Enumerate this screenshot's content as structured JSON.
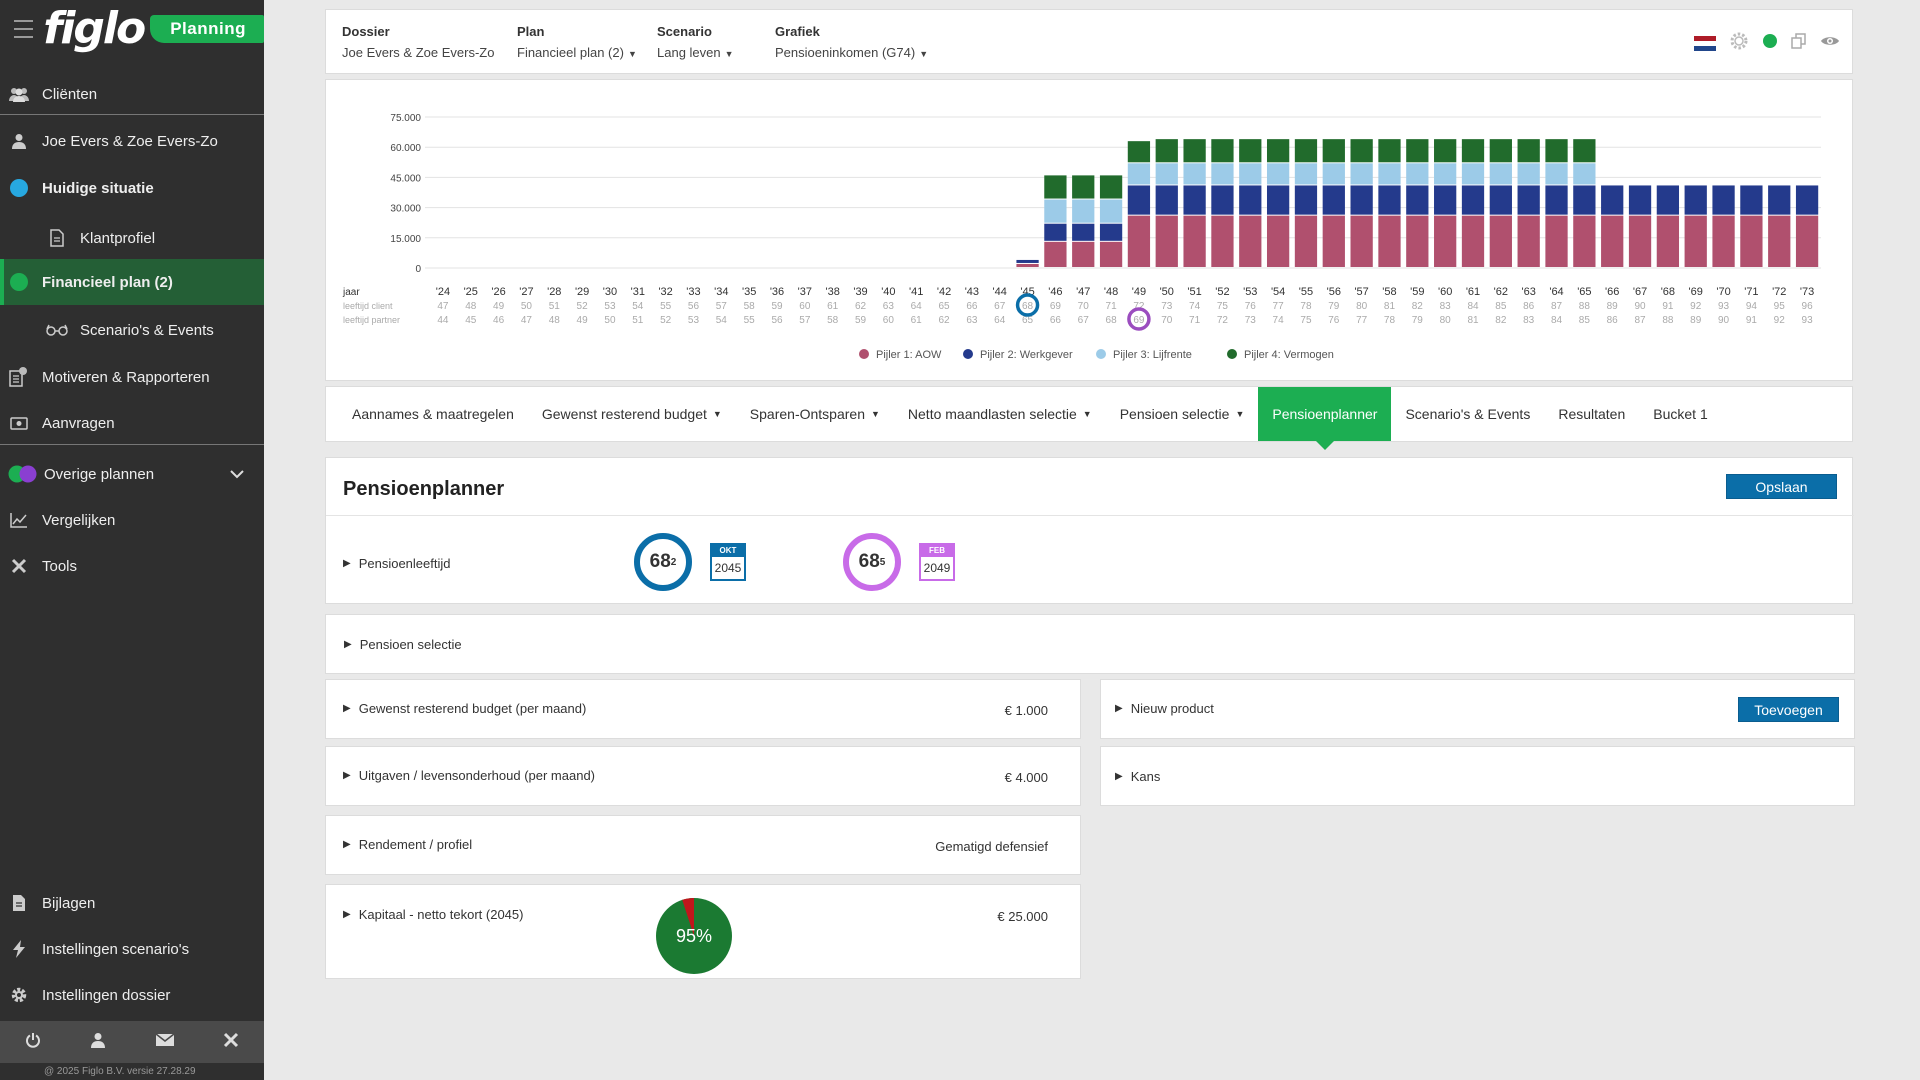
{
  "sidebar": {
    "logo": "figlo",
    "badge": "Planning",
    "items": {
      "clienten": "Cliënten",
      "client": "Joe Evers & Zoe Evers-Zo",
      "huidige": "Huidige situatie",
      "klantprofiel": "Klantprofiel",
      "financieel": "Financieel plan (2)",
      "scenarios": "Scenario's & Events",
      "motiveren": "Motiveren & Rapporteren",
      "aanvragen": "Aanvragen",
      "overige": "Overige plannen",
      "vergelijken": "Vergelijken",
      "tools": "Tools",
      "bijlagen": "Bijlagen",
      "inst_scenarios": "Instellingen scenario's",
      "inst_dossier": "Instellingen dossier"
    },
    "copyright": "@ 2025 Figlo B.V. versie 27.28.29"
  },
  "header": {
    "dossier_label": "Dossier",
    "dossier_value": "Joe Evers & Zoe Evers-Zo",
    "plan_label": "Plan",
    "plan_value": "Financieel plan (2)",
    "scenario_label": "Scenario",
    "scenario_value": "Lang leven",
    "grafiek_label": "Grafiek",
    "grafiek_value": "Pensioeninkomen (G74)"
  },
  "colors": {
    "aow": "#b0506e",
    "werkgever": "#243a8c",
    "lijfrente": "#9ccbe8",
    "vermogen": "#216b2c",
    "green": "#1cae52",
    "blue": "#0b6ea8",
    "purple": "#c86be8"
  },
  "chart_data": {
    "type": "bar",
    "stacked": true,
    "categories": [
      "'24",
      "'25",
      "'26",
      "'27",
      "'28",
      "'29",
      "'30",
      "'31",
      "'32",
      "'33",
      "'34",
      "'35",
      "'36",
      "'37",
      "'38",
      "'39",
      "'40",
      "'41",
      "'42",
      "'43",
      "'44",
      "'45",
      "'46",
      "'47",
      "'48",
      "'49",
      "'50",
      "'51",
      "'52",
      "'53",
      "'54",
      "'55",
      "'56",
      "'57",
      "'58",
      "'59",
      "'60",
      "'61",
      "'62",
      "'63",
      "'64",
      "'65",
      "'66",
      "'67",
      "'68",
      "'69",
      "'70",
      "'71",
      "'72",
      "'73"
    ],
    "ylim": [
      0,
      75000
    ],
    "yticks": [
      "75.000",
      "60.000",
      "45.000",
      "30.000",
      "15.000",
      "0"
    ],
    "ytick_values": [
      75000,
      60000,
      45000,
      30000,
      15000,
      0
    ],
    "series": [
      {
        "name": "Pijler 1: AOW",
        "values": [
          0,
          0,
          0,
          0,
          0,
          0,
          0,
          0,
          0,
          0,
          0,
          0,
          0,
          0,
          0,
          0,
          0,
          0,
          0,
          0,
          0,
          2000,
          13000,
          13000,
          13000,
          26000,
          26000,
          26000,
          26000,
          26000,
          26000,
          26000,
          26000,
          26000,
          26000,
          26000,
          26000,
          26000,
          26000,
          26000,
          26000,
          26000,
          26000,
          26000,
          26000,
          26000,
          26000,
          26000,
          26000,
          26000
        ]
      },
      {
        "name": "Pijler 2: Werkgever",
        "values": [
          0,
          0,
          0,
          0,
          0,
          0,
          0,
          0,
          0,
          0,
          0,
          0,
          0,
          0,
          0,
          0,
          0,
          0,
          0,
          0,
          0,
          2000,
          9000,
          9000,
          9000,
          15000,
          15000,
          15000,
          15000,
          15000,
          15000,
          15000,
          15000,
          15000,
          15000,
          15000,
          15000,
          15000,
          15000,
          15000,
          15000,
          15000,
          15000,
          15000,
          15000,
          15000,
          15000,
          15000,
          15000,
          15000
        ]
      },
      {
        "name": "Pijler 3: Lijfrente",
        "values": [
          0,
          0,
          0,
          0,
          0,
          0,
          0,
          0,
          0,
          0,
          0,
          0,
          0,
          0,
          0,
          0,
          0,
          0,
          0,
          0,
          0,
          0,
          12000,
          12000,
          12000,
          11000,
          11000,
          11000,
          11000,
          11000,
          11000,
          11000,
          11000,
          11000,
          11000,
          11000,
          11000,
          11000,
          11000,
          11000,
          11000,
          11000,
          0,
          0,
          0,
          0,
          0,
          0,
          0,
          0
        ]
      },
      {
        "name": "Pijler 4: Vermogen",
        "values": [
          0,
          0,
          0,
          0,
          0,
          0,
          0,
          0,
          0,
          0,
          0,
          0,
          0,
          0,
          0,
          0,
          0,
          0,
          0,
          0,
          0,
          0,
          12000,
          12000,
          12000,
          11000,
          12000,
          12000,
          12000,
          12000,
          12000,
          12000,
          12000,
          12000,
          12000,
          12000,
          12000,
          12000,
          12000,
          12000,
          12000,
          12000,
          0,
          0,
          0,
          0,
          0,
          0,
          0,
          0
        ]
      }
    ],
    "row_labels": [
      "jaar",
      "leeftijd client",
      "leeftijd partner"
    ],
    "age_client": [
      "47",
      "48",
      "49",
      "50",
      "51",
      "52",
      "53",
      "54",
      "55",
      "56",
      "57",
      "58",
      "59",
      "60",
      "61",
      "62",
      "63",
      "64",
      "65",
      "66",
      "67",
      "68",
      "69",
      "70",
      "71",
      "72",
      "73",
      "74",
      "75",
      "76",
      "77",
      "78",
      "79",
      "80",
      "81",
      "82",
      "83",
      "84",
      "85",
      "86",
      "87",
      "88",
      "89",
      "90",
      "91",
      "92",
      "93",
      "94",
      "95",
      "96"
    ],
    "age_partner": [
      "44",
      "45",
      "46",
      "47",
      "48",
      "49",
      "50",
      "51",
      "52",
      "53",
      "54",
      "55",
      "56",
      "57",
      "58",
      "59",
      "60",
      "61",
      "62",
      "63",
      "64",
      "65",
      "66",
      "67",
      "68",
      "69",
      "70",
      "71",
      "72",
      "73",
      "74",
      "75",
      "76",
      "77",
      "78",
      "79",
      "80",
      "81",
      "82",
      "83",
      "84",
      "85",
      "86",
      "87",
      "88",
      "89",
      "90",
      "91",
      "92",
      "93"
    ],
    "marker_client_index": 21,
    "marker_partner_index": 25
  },
  "tabs": [
    {
      "label": "Aannames & maatregelen",
      "caret": false
    },
    {
      "label": "Gewenst resterend budget",
      "caret": true
    },
    {
      "label": "Sparen-Ontsparen",
      "caret": true
    },
    {
      "label": "Netto maandlasten selectie",
      "caret": true
    },
    {
      "label": "Pensioen selectie",
      "caret": true
    },
    {
      "label": "Pensioenplanner",
      "caret": false,
      "active": true
    },
    {
      "label": "Scenario's & Events",
      "caret": false
    },
    {
      "label": "Resultaten",
      "caret": false
    },
    {
      "label": "Bucket 1",
      "caret": false
    }
  ],
  "planner": {
    "title": "Pensioenplanner",
    "save": "Opslaan",
    "pensioenleeftijd": "Pensioenleeftijd",
    "client_age": "68",
    "client_months": "2",
    "client_month": "OKT",
    "client_year": "2045",
    "partner_age": "68",
    "partner_months": "5",
    "partner_month": "FEB",
    "partner_year": "2049",
    "pensioen_selectie": "Pensioen selectie",
    "budget_label": "Gewenst resterend budget (per maand)",
    "budget_value": "€ 1.000",
    "uitgaven_label": "Uitgaven / levensonderhoud (per maand)",
    "uitgaven_value": "€ 4.000",
    "rendement_label": "Rendement / profiel",
    "rendement_value": "Gematigd defensief",
    "kapitaal_label": "Kapitaal - netto tekort (2045)",
    "kapitaal_value": "€ 25.000",
    "kapitaal_pct": "95%",
    "kapitaal_fraction": 0.95,
    "nieuw_product": "Nieuw product",
    "toevoegen": "Toevoegen",
    "kans": "Kans"
  }
}
